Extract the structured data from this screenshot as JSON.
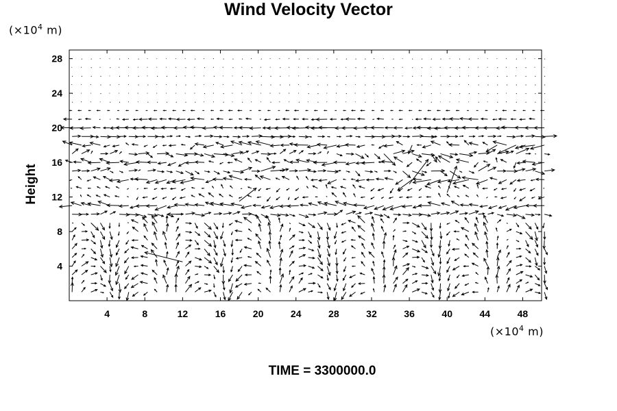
{
  "chart_data": {
    "type": "vector_field",
    "title": "Wind Velocity Vector",
    "ylabel": "Height",
    "xlabel": "",
    "x_unit_prefix": "(×10",
    "x_unit_exp": "4",
    "x_unit_suffix": " m)",
    "y_unit_prefix": "(×10",
    "y_unit_exp": "4",
    "y_unit_suffix": " m)",
    "time_label": "TIME = 3300000.0",
    "xlim": [
      0,
      50
    ],
    "ylim": [
      0,
      29
    ],
    "x_ticks": [
      "4",
      "8",
      "12",
      "16",
      "20",
      "24",
      "28",
      "32",
      "36",
      "40",
      "44",
      "48"
    ],
    "y_ticks": [
      "4",
      "8",
      "12",
      "16",
      "20",
      "24",
      "28"
    ],
    "grid": false,
    "arrow_color": "#000000",
    "highlighted_vectors": [
      {
        "x": 12,
        "y": 10,
        "u": -1.6,
        "v": 0.0
      },
      {
        "x": 12,
        "y": 4.5,
        "u": -4.0,
        "v": 1.0
      },
      {
        "x": 18,
        "y": 11.5,
        "u": 1.8,
        "v": 1.4
      },
      {
        "x": 36,
        "y": 13.5,
        "u": 2.0,
        "v": 2.6
      },
      {
        "x": 40,
        "y": 12.5,
        "u": 1.0,
        "v": 2.8
      }
    ]
  }
}
